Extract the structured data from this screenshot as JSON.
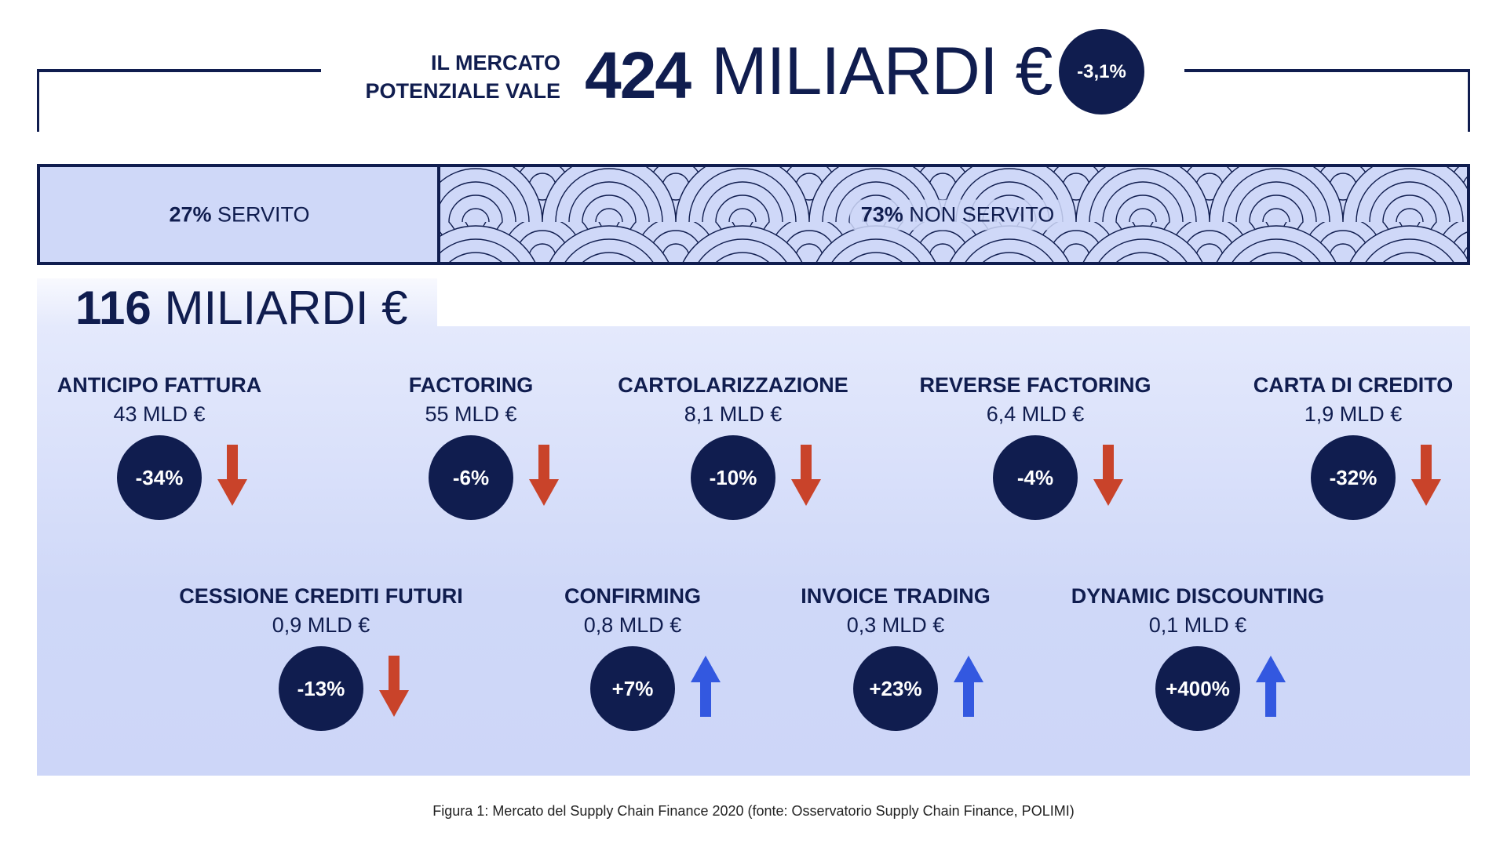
{
  "header": {
    "label_line1": "IL MERCATO",
    "label_line2": "POTENZIALE VALE",
    "value": "424",
    "unit": "MILIARDI €",
    "change": "-3,1%"
  },
  "market_bar": {
    "served_pct": "27%",
    "served_label": "SERVITO",
    "not_served_pct": "73%",
    "not_served_label": "NON SERVITO",
    "served_fraction": 0.27
  },
  "served_total": {
    "value": "116",
    "unit": "MILIARDI €"
  },
  "items": [
    {
      "title": "ANTICIPO FATTURA",
      "value": "43 MLD €",
      "change": "-34%",
      "trend": "down"
    },
    {
      "title": "FACTORING",
      "value": "55 MLD €",
      "change": "-6%",
      "trend": "down"
    },
    {
      "title": "CARTOLARIZZAZIONE",
      "value": "8,1 MLD €",
      "change": "-10%",
      "trend": "down"
    },
    {
      "title": "REVERSE FACTORING",
      "value": "6,4 MLD €",
      "change": "-4%",
      "trend": "down"
    },
    {
      "title": "CARTA DI CREDITO",
      "value": "1,9 MLD €",
      "change": "-32%",
      "trend": "down"
    },
    {
      "title": "CESSIONE CREDITI FUTURI",
      "value": "0,9 MLD €",
      "change": "-13%",
      "trend": "down"
    },
    {
      "title": "CONFIRMING",
      "value": "0,8 MLD €",
      "change": "+7%",
      "trend": "up"
    },
    {
      "title": "INVOICE TRADING",
      "value": "0,3 MLD €",
      "change": "+23%",
      "trend": "up"
    },
    {
      "title": "DYNAMIC DISCOUNTING",
      "value": "0,1 MLD €",
      "change": "+400%",
      "trend": "up"
    }
  ],
  "colors": {
    "navy": "#101d4f",
    "down": "#c9432a",
    "up": "#3358e0",
    "panel": "#cfd8f8"
  },
  "caption": "Figura 1: Mercato del Supply Chain Finance 2020 (fonte: Osservatorio Supply Chain Finance, POLIMI)"
}
